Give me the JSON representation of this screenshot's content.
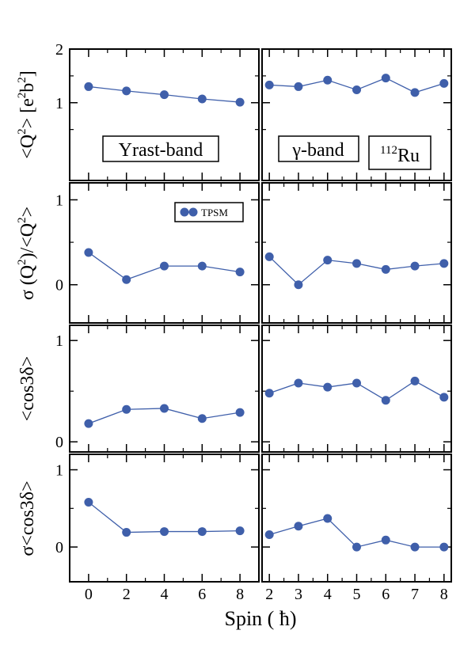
{
  "colors": {
    "series": "#3f5faa",
    "axes": "#000000"
  },
  "xlabel": "Spin ( ħ)",
  "rows": [
    {
      "ylabel_parts": [
        "<Q",
        "2",
        "> [e",
        "2",
        "b",
        "2",
        "]"
      ],
      "ylim": [
        -0.45,
        2.0
      ],
      "yticks": [
        1,
        2
      ]
    },
    {
      "ylabel_parts": [
        "σ  (Q",
        "2",
        ")/<Q",
        "2",
        ">"
      ],
      "ylim": [
        -0.45,
        1.2
      ],
      "yticks": [
        0,
        1
      ]
    },
    {
      "ylabel_parts": [
        "<cos3δ>"
      ],
      "ylim": [
        -0.1,
        1.15
      ],
      "yticks": [
        0,
        1
      ]
    },
    {
      "ylabel_parts": [
        "σ<cos3δ>"
      ],
      "ylim": [
        -0.45,
        1.2
      ],
      "yticks": [
        0,
        1
      ]
    }
  ],
  "columns": [
    {
      "xlim": [
        -1,
        9
      ],
      "xticks": [
        0,
        2,
        4,
        6,
        8
      ]
    },
    {
      "xlim": [
        1.75,
        8.25
      ],
      "xticks": [
        2,
        3,
        4,
        5,
        6,
        7,
        8
      ]
    }
  ],
  "annotations": {
    "yrast": "Yrast-band",
    "gamma": "γ-band",
    "nucleus_mass": "112",
    "nucleus_symbol": "Ru"
  },
  "legend": {
    "label": "TPSM"
  },
  "chart_data": [
    {
      "type": "line",
      "panel": "Yrast-band <Q2>",
      "series": [
        {
          "name": "TPSM",
          "x": [
            0,
            2,
            4,
            6,
            8
          ],
          "y": [
            1.3,
            1.22,
            1.15,
            1.07,
            1.01
          ]
        }
      ]
    },
    {
      "type": "line",
      "panel": "γ-band <Q2>",
      "series": [
        {
          "name": "TPSM",
          "x": [
            2,
            3,
            4,
            5,
            6,
            7,
            8
          ],
          "y": [
            1.33,
            1.3,
            1.42,
            1.24,
            1.46,
            1.19,
            1.36
          ]
        }
      ]
    },
    {
      "type": "line",
      "panel": "Yrast-band σ(Q2)/<Q2>",
      "series": [
        {
          "name": "TPSM",
          "x": [
            0,
            2,
            4,
            6,
            8
          ],
          "y": [
            0.38,
            0.06,
            0.22,
            0.22,
            0.15
          ]
        }
      ]
    },
    {
      "type": "line",
      "panel": "γ-band σ(Q2)/<Q2>",
      "series": [
        {
          "name": "TPSM",
          "x": [
            2,
            3,
            4,
            5,
            6,
            7,
            8
          ],
          "y": [
            0.33,
            0.0,
            0.29,
            0.25,
            0.18,
            0.22,
            0.25
          ]
        }
      ]
    },
    {
      "type": "line",
      "panel": "Yrast-band <cos3δ>",
      "series": [
        {
          "name": "TPSM",
          "x": [
            0,
            2,
            4,
            6,
            8
          ],
          "y": [
            0.18,
            0.32,
            0.33,
            0.23,
            0.29
          ]
        }
      ]
    },
    {
      "type": "line",
      "panel": "γ-band <cos3δ>",
      "series": [
        {
          "name": "TPSM",
          "x": [
            2,
            3,
            4,
            5,
            6,
            7,
            8
          ],
          "y": [
            0.48,
            0.58,
            0.54,
            0.58,
            0.41,
            0.6,
            0.44
          ]
        }
      ]
    },
    {
      "type": "line",
      "panel": "Yrast-band σ<cos3δ>",
      "series": [
        {
          "name": "TPSM",
          "x": [
            0,
            2,
            4,
            6,
            8
          ],
          "y": [
            0.58,
            0.19,
            0.2,
            0.2,
            0.21
          ]
        }
      ]
    },
    {
      "type": "line",
      "panel": "γ-band σ<cos3δ>",
      "series": [
        {
          "name": "TPSM",
          "x": [
            2,
            3,
            4,
            5,
            6,
            7,
            8
          ],
          "y": [
            0.16,
            0.27,
            0.37,
            0.0,
            0.09,
            0.0,
            0.0
          ]
        }
      ]
    }
  ]
}
